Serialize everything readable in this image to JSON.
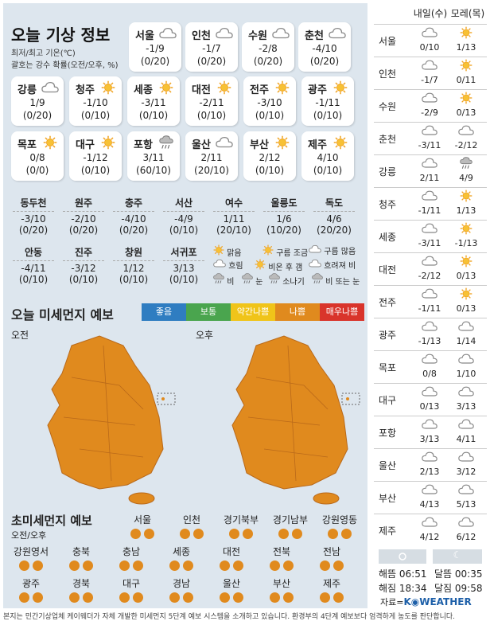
{
  "header": {
    "title": "오늘 기상 정보",
    "note1": "최저/최고 기온(℃)",
    "note2": "괄호는 강수 확률(오전/오후, %)"
  },
  "cities": [
    {
      "name": "서울",
      "temp": "-1/9",
      "rain": "(0/20)",
      "icon": "cloud-icon"
    },
    {
      "name": "인천",
      "temp": "-1/7",
      "rain": "(0/20)",
      "icon": "cloud-icon"
    },
    {
      "name": "수원",
      "temp": "-2/8",
      "rain": "(0/20)",
      "icon": "cloud-icon"
    },
    {
      "name": "춘천",
      "temp": "-4/10",
      "rain": "(0/20)",
      "icon": "cloud-icon"
    },
    {
      "name": "강릉",
      "temp": "1/9",
      "rain": "(0/20)",
      "icon": "cloud-icon"
    },
    {
      "name": "청주",
      "temp": "-1/10",
      "rain": "(0/10)",
      "icon": "sun-icon"
    },
    {
      "name": "세종",
      "temp": "-3/11",
      "rain": "(0/10)",
      "icon": "sun-icon"
    },
    {
      "name": "대전",
      "temp": "-2/11",
      "rain": "(0/10)",
      "icon": "sun-icon"
    },
    {
      "name": "전주",
      "temp": "-3/10",
      "rain": "(0/10)",
      "icon": "sun-icon"
    },
    {
      "name": "광주",
      "temp": "-1/11",
      "rain": "(0/10)",
      "icon": "sun-icon"
    },
    {
      "name": "목포",
      "temp": "0/8",
      "rain": "(0/0)",
      "icon": "sun-icon"
    },
    {
      "name": "대구",
      "temp": "-1/12",
      "rain": "(0/10)",
      "icon": "sun-icon"
    },
    {
      "name": "포항",
      "temp": "3/11",
      "rain": "(60/10)",
      "icon": "sun-cloud-rain-icon"
    },
    {
      "name": "울산",
      "temp": "2/11",
      "rain": "(20/10)",
      "icon": "cloud-icon"
    },
    {
      "name": "부산",
      "temp": "2/12",
      "rain": "(0/10)",
      "icon": "sun-icon"
    },
    {
      "name": "제주",
      "temp": "4/10",
      "rain": "(0/10)",
      "icon": "sun-icon"
    }
  ],
  "row2": [
    {
      "name": "동두천",
      "temp": "-3/10",
      "rain": "(0/20)"
    },
    {
      "name": "원주",
      "temp": "-2/10",
      "rain": "(0/20)"
    },
    {
      "name": "충주",
      "temp": "-4/10",
      "rain": "(0/20)"
    },
    {
      "name": "서산",
      "temp": "-4/9",
      "rain": "(0/10)"
    },
    {
      "name": "여수",
      "temp": "1/11",
      "rain": "(20/10)"
    },
    {
      "name": "울릉도",
      "temp": "1/6",
      "rain": "(10/20)"
    },
    {
      "name": "독도",
      "temp": "4/6",
      "rain": "(20/20)"
    }
  ],
  "row3": [
    {
      "name": "안동",
      "temp": "-4/11",
      "rain": "(0/10)"
    },
    {
      "name": "진주",
      "temp": "-3/12",
      "rain": "(0/10)"
    },
    {
      "name": "창원",
      "temp": "1/12",
      "rain": "(0/10)"
    },
    {
      "name": "서귀포",
      "temp": "3/13",
      "rain": "(0/10)"
    }
  ],
  "icon_legend": {
    "sunny": "맑음",
    "few_clouds": "구름 조금",
    "many_clouds": "구름 많음",
    "cloudy": "흐림",
    "clear_after_rain": "비온 후 갬",
    "cloudy_rain": "흐려져 비",
    "rain": "비",
    "snow": "눈",
    "shower": "소나기",
    "rain_or_snow": "비 또는 눈"
  },
  "pm10": {
    "title": "오늘 미세먼지 예보",
    "levels": [
      {
        "label": "좋음",
        "color": "#2f7dc1"
      },
      {
        "label": "보통",
        "color": "#4aa54e"
      },
      {
        "label": "약간나쁨",
        "color": "#f0c419"
      },
      {
        "label": "나쁨",
        "color": "#e08a1e"
      },
      {
        "label": "매우나쁨",
        "color": "#d9342b"
      }
    ],
    "am_label": "오전",
    "pm_label": "오후",
    "map_color": "#e08a1e"
  },
  "pm25": {
    "title": "초미세먼지 예보",
    "subtitle": "오전/오후",
    "cities": [
      "서울",
      "인천",
      "경기북부",
      "경기남부",
      "강원영동",
      "강원영서",
      "충북",
      "충남",
      "세종",
      "대전",
      "전북",
      "전남",
      "광주",
      "경북",
      "대구",
      "경남",
      "울산",
      "부산",
      "제주"
    ]
  },
  "forecast": {
    "col1": "내일(수)",
    "col2": "모레(목)",
    "rows": [
      {
        "city": "서울",
        "d1_icon": "cloud-icon",
        "d1": "0/10",
        "d2_icon": "sun-icon",
        "d2": "1/13"
      },
      {
        "city": "인천",
        "d1_icon": "cloud-icon",
        "d1": "-1/7",
        "d2_icon": "sun-icon",
        "d2": "0/11"
      },
      {
        "city": "수원",
        "d1_icon": "cloud-icon",
        "d1": "-2/9",
        "d2_icon": "sun-icon",
        "d2": "0/13"
      },
      {
        "city": "춘천",
        "d1_icon": "cloud-icon",
        "d1": "-3/11",
        "d2_icon": "cloud-icon",
        "d2": "-2/12"
      },
      {
        "city": "강릉",
        "d1_icon": "cloud-icon",
        "d1": "2/11",
        "d2_icon": "cloud-rain-icon",
        "d2": "4/9"
      },
      {
        "city": "청주",
        "d1_icon": "cloud-icon",
        "d1": "-1/11",
        "d2_icon": "sun-icon",
        "d2": "1/13"
      },
      {
        "city": "세종",
        "d1_icon": "cloud-icon",
        "d1": "-3/11",
        "d2_icon": "sun-icon",
        "d2": "-1/13"
      },
      {
        "city": "대전",
        "d1_icon": "cloud-icon",
        "d1": "-2/12",
        "d2_icon": "sun-icon",
        "d2": "0/13"
      },
      {
        "city": "전주",
        "d1_icon": "cloud-icon",
        "d1": "-1/11",
        "d2_icon": "sun-icon",
        "d2": "0/13"
      },
      {
        "city": "광주",
        "d1_icon": "cloud-icon",
        "d1": "-1/13",
        "d2_icon": "cloud-icon",
        "d2": "1/14"
      },
      {
        "city": "목포",
        "d1_icon": "cloud-icon",
        "d1": "0/8",
        "d2_icon": "cloud-icon",
        "d2": "1/10"
      },
      {
        "city": "대구",
        "d1_icon": "cloud-icon",
        "d1": "0/13",
        "d2_icon": "cloud-icon",
        "d2": "3/13"
      },
      {
        "city": "포항",
        "d1_icon": "cloud-icon",
        "d1": "3/13",
        "d2_icon": "cloud-icon",
        "d2": "4/11"
      },
      {
        "city": "울산",
        "d1_icon": "cloud-icon",
        "d1": "2/13",
        "d2_icon": "cloud-icon",
        "d2": "3/12"
      },
      {
        "city": "부산",
        "d1_icon": "cloud-icon",
        "d1": "4/13",
        "d2_icon": "cloud-icon",
        "d2": "5/13"
      },
      {
        "city": "제주",
        "d1_icon": "cloud-icon",
        "d1": "4/12",
        "d2_icon": "cloud-icon",
        "d2": "6/12"
      }
    ]
  },
  "sun": {
    "sunrise": "해뜸 06:51",
    "sunset": "해짐 18:34",
    "moonrise": "달뜸 00:35",
    "moonset": "달짐 09:58"
  },
  "source": {
    "prefix": "자료=",
    "brand": "K◉WEATHER"
  },
  "footer": "본지는 민간기상업체 케이웨더가 자체 개발한 미세먼지 5단계 예보 시스템을 소개하고 있습니다. 환경부의 4단계 예보보다 엄격하게 농도를 판단합니다."
}
